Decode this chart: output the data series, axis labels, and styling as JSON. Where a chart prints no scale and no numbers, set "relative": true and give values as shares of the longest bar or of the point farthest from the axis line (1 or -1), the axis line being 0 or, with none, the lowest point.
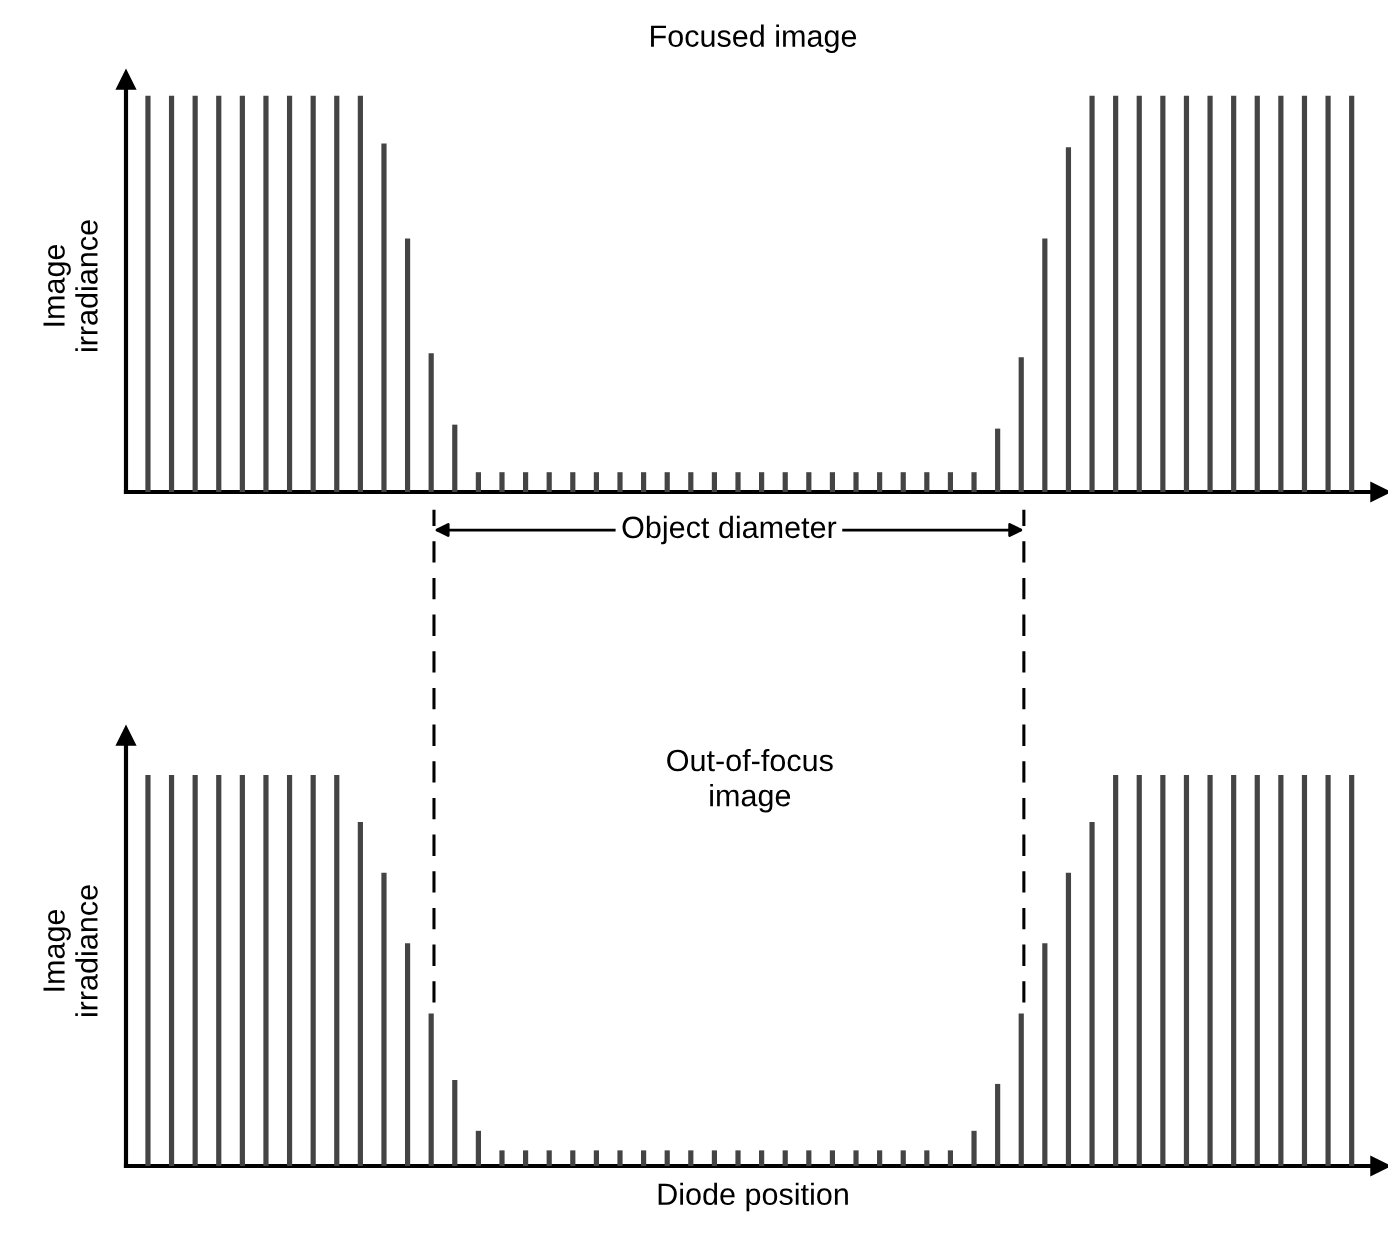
{
  "chart_data": [
    {
      "type": "bar",
      "relative": true,
      "title": "Focused image",
      "ylabel": "Image\nirradiance",
      "color": "#444444",
      "categories": [
        null,
        null,
        null,
        null,
        null,
        null,
        null,
        null,
        null,
        null,
        null,
        null,
        null,
        null,
        null,
        null,
        null,
        null,
        null,
        null,
        null,
        null,
        null,
        null,
        null,
        null,
        null,
        null,
        null,
        null,
        null,
        null,
        null,
        null,
        null,
        null,
        null,
        null,
        null,
        null,
        null,
        null,
        null,
        null,
        null,
        null,
        null,
        null,
        null,
        null,
        null,
        null
      ],
      "values": [
        1,
        1,
        1,
        1,
        1,
        1,
        1,
        1,
        1,
        1,
        0.88,
        0.64,
        0.35,
        0.17,
        0.05,
        0.05,
        0.05,
        0.05,
        0.05,
        0.05,
        0.05,
        0.05,
        0.05,
        0.05,
        0.05,
        0.05,
        0.05,
        0.05,
        0.05,
        0.05,
        0.05,
        0.05,
        0.05,
        0.05,
        0.05,
        0.05,
        0.16,
        0.34,
        0.64,
        0.87,
        1,
        1,
        1,
        1,
        1,
        1,
        1,
        1,
        1,
        1,
        1,
        1
      ]
    },
    {
      "type": "bar",
      "relative": true,
      "title": "Out-of-focus\nimage",
      "ylabel": "Image\nirradiance",
      "xlabel": "Diode position",
      "color": "#444444",
      "categories": [
        null,
        null,
        null,
        null,
        null,
        null,
        null,
        null,
        null,
        null,
        null,
        null,
        null,
        null,
        null,
        null,
        null,
        null,
        null,
        null,
        null,
        null,
        null,
        null,
        null,
        null,
        null,
        null,
        null,
        null,
        null,
        null,
        null,
        null,
        null,
        null,
        null,
        null,
        null,
        null,
        null,
        null,
        null,
        null,
        null,
        null,
        null,
        null,
        null,
        null,
        null,
        null
      ],
      "values": [
        1,
        1,
        1,
        1,
        1,
        1,
        1,
        1,
        1,
        0.88,
        0.75,
        0.57,
        0.39,
        0.22,
        0.09,
        0.04,
        0.04,
        0.04,
        0.04,
        0.04,
        0.04,
        0.04,
        0.04,
        0.04,
        0.04,
        0.04,
        0.04,
        0.04,
        0.04,
        0.04,
        0.04,
        0.04,
        0.04,
        0.04,
        0.04,
        0.09,
        0.21,
        0.39,
        0.57,
        0.75,
        0.88,
        1,
        1,
        1,
        1,
        1,
        1,
        1,
        1,
        1,
        1,
        1
      ],
      "annotations": [
        "Object diameter"
      ]
    }
  ]
}
